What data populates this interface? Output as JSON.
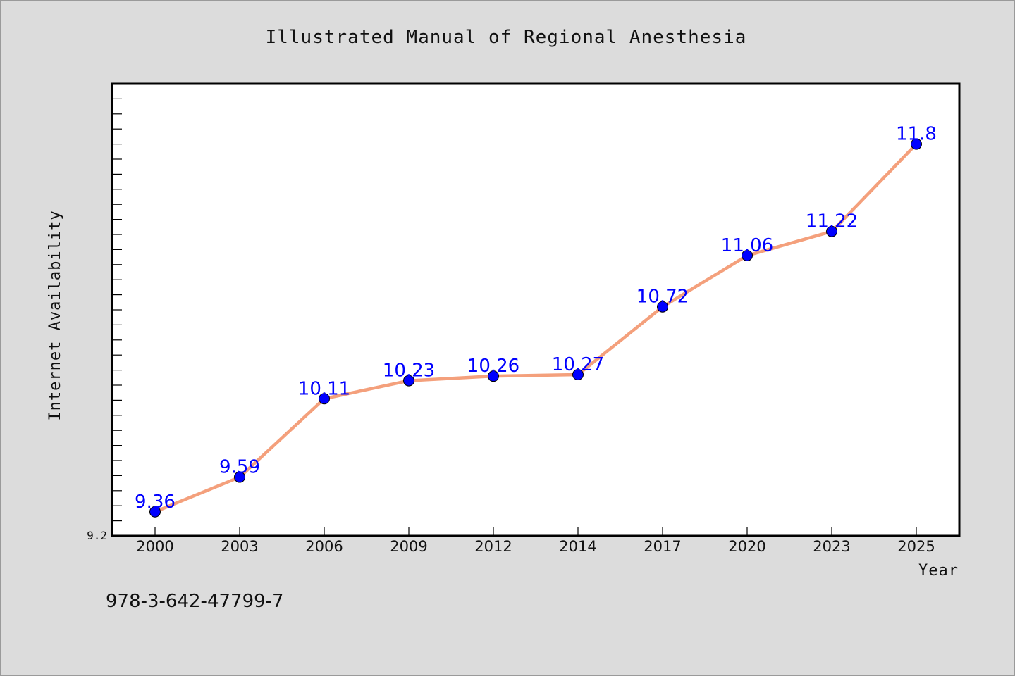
{
  "chart_data": {
    "type": "line",
    "title": "Illustrated Manual of Regional Anesthesia",
    "xlabel": "Year",
    "ylabel": "Internet Availability",
    "categories": [
      "2000",
      "2003",
      "2006",
      "2009",
      "2012",
      "2014",
      "2017",
      "2020",
      "2023",
      "2025"
    ],
    "series": [
      {
        "values": [
          9.36,
          9.59,
          10.11,
          10.23,
          10.26,
          10.27,
          10.72,
          11.06,
          11.22,
          11.8
        ],
        "labels": [
          "9.36",
          "9.59",
          "10.11",
          "10.23",
          "10.26",
          "10.27",
          "10.72",
          "11.06",
          "11.22",
          "11.8"
        ]
      }
    ],
    "ylim": [
      9.2,
      12.2
    ],
    "y_tick_labels": [
      "9.2"
    ],
    "grid": false,
    "legend": "none",
    "colors": {
      "line": "#f4a07c",
      "marker": "#0000ff",
      "data_label": "#0000ff",
      "plot_background": "#ffffff",
      "page_background": "#dcdcdc"
    }
  },
  "footer": {
    "isbn": "978-3-642-47799-7"
  }
}
